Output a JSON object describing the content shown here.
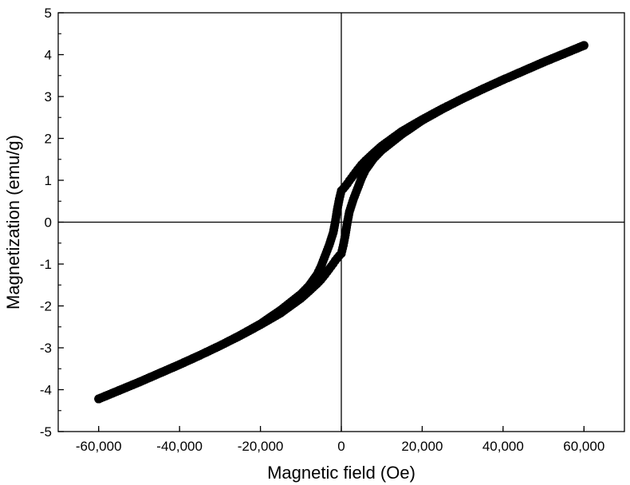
{
  "chart_data": {
    "type": "scatter",
    "xlabel": "Magnetic field (Oe)",
    "ylabel": "Magnetization (emu/g)",
    "xlim": [
      -70000,
      70000
    ],
    "ylim": [
      -5,
      5
    ],
    "x_ticks": [
      -60000,
      -40000,
      -20000,
      0,
      20000,
      40000,
      60000
    ],
    "x_tick_labels": [
      "-60,000",
      "-40,000",
      "-20,000",
      "0",
      "20,000",
      "40,000",
      "60,000"
    ],
    "y_ticks": [
      -5,
      -4,
      -3,
      -2,
      -1,
      0,
      1,
      2,
      3,
      4,
      5
    ],
    "y_tick_labels": [
      "-5",
      "-4",
      "-3",
      "-2",
      "-1",
      "0",
      "1",
      "2",
      "3",
      "4",
      "5"
    ],
    "grid": false,
    "zero_lines": true,
    "marker_color": "#000000",
    "series": [
      {
        "branch": "descending",
        "points": [
          [
            60000,
            4.22
          ],
          [
            55000,
            4.02
          ],
          [
            50000,
            3.82
          ],
          [
            45000,
            3.61
          ],
          [
            40000,
            3.4
          ],
          [
            35000,
            3.18
          ],
          [
            30000,
            2.95
          ],
          [
            25000,
            2.71
          ],
          [
            20000,
            2.45
          ],
          [
            15000,
            2.17
          ],
          [
            10000,
            1.82
          ],
          [
            8000,
            1.65
          ],
          [
            6000,
            1.47
          ],
          [
            5000,
            1.37
          ],
          [
            4000,
            1.25
          ],
          [
            3000,
            1.12
          ],
          [
            2000,
            0.99
          ],
          [
            1500,
            0.92
          ],
          [
            1000,
            0.86
          ],
          [
            500,
            0.8
          ],
          [
            0,
            0.75
          ],
          [
            -500,
            0.55
          ],
          [
            -1000,
            0.3
          ],
          [
            -1500,
            0.0
          ],
          [
            -2000,
            -0.25
          ],
          [
            -3000,
            -0.55
          ],
          [
            -4000,
            -0.8
          ],
          [
            -5000,
            -1.05
          ],
          [
            -6000,
            -1.25
          ],
          [
            -8000,
            -1.52
          ],
          [
            -10000,
            -1.72
          ],
          [
            -15000,
            -2.1
          ],
          [
            -20000,
            -2.43
          ],
          [
            -25000,
            -2.7
          ],
          [
            -30000,
            -2.95
          ],
          [
            -35000,
            -3.18
          ],
          [
            -40000,
            -3.4
          ],
          [
            -45000,
            -3.61
          ],
          [
            -50000,
            -3.82
          ],
          [
            -55000,
            -4.02
          ],
          [
            -60000,
            -4.22
          ]
        ]
      },
      {
        "branch": "ascending",
        "points": [
          [
            -60000,
            -4.22
          ],
          [
            -55000,
            -4.02
          ],
          [
            -50000,
            -3.82
          ],
          [
            -45000,
            -3.61
          ],
          [
            -40000,
            -3.4
          ],
          [
            -35000,
            -3.18
          ],
          [
            -30000,
            -2.95
          ],
          [
            -25000,
            -2.71
          ],
          [
            -20000,
            -2.45
          ],
          [
            -15000,
            -2.17
          ],
          [
            -10000,
            -1.82
          ],
          [
            -8000,
            -1.65
          ],
          [
            -6000,
            -1.47
          ],
          [
            -5000,
            -1.37
          ],
          [
            -4000,
            -1.25
          ],
          [
            -3000,
            -1.12
          ],
          [
            -2000,
            -0.99
          ],
          [
            -1500,
            -0.92
          ],
          [
            -1000,
            -0.86
          ],
          [
            -500,
            -0.8
          ],
          [
            0,
            -0.75
          ],
          [
            500,
            -0.55
          ],
          [
            1000,
            -0.3
          ],
          [
            1500,
            0.0
          ],
          [
            2000,
            0.25
          ],
          [
            3000,
            0.55
          ],
          [
            4000,
            0.8
          ],
          [
            5000,
            1.05
          ],
          [
            6000,
            1.25
          ],
          [
            8000,
            1.52
          ],
          [
            10000,
            1.72
          ],
          [
            15000,
            2.1
          ],
          [
            20000,
            2.43
          ],
          [
            25000,
            2.7
          ],
          [
            30000,
            2.95
          ],
          [
            35000,
            3.18
          ],
          [
            40000,
            3.4
          ],
          [
            45000,
            3.61
          ],
          [
            50000,
            3.82
          ],
          [
            55000,
            4.02
          ],
          [
            60000,
            4.22
          ]
        ]
      }
    ]
  }
}
